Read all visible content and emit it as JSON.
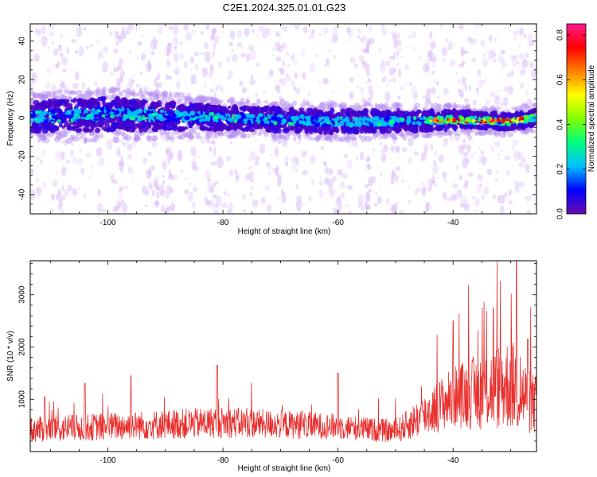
{
  "page_title": "C2E1.2024.325.01.01.G23",
  "colors": {
    "snr_line": "#e8302e",
    "colorbar": [
      "#6a0dad",
      "#0000ff",
      "#00c0ff",
      "#00ff80",
      "#80ff00",
      "#ffff00",
      "#ff8000",
      "#ff0000",
      "#ff1a8c"
    ],
    "noise_light": "#e6d2fa",
    "band_dark": "#4a00c8"
  },
  "chart_data": [
    {
      "type": "heatmap",
      "title": "C2E1.2024.325.01.01.G23",
      "xlabel": "Height of straight line (km)",
      "ylabel": "Frequency (Hz)",
      "xlim": [
        -113.5,
        -25.5
      ],
      "ylim": [
        -50,
        49
      ],
      "xticks": [
        -100,
        -80,
        -60,
        -40
      ],
      "yticks": [
        -40,
        -20,
        0,
        20,
        40
      ],
      "colorbar": {
        "label": "Normalized spectral amplitude",
        "range": [
          0,
          0.85
        ],
        "ticks": [
          0.0,
          0.2,
          0.4,
          0.6,
          0.8
        ]
      },
      "band_center_hz": [
        {
          "x": -113,
          "y": 0.5
        },
        {
          "x": -100,
          "y": 2.0
        },
        {
          "x": -80,
          "y": 0.0
        },
        {
          "x": -60,
          "y": -2.0
        },
        {
          "x": -45,
          "y": -1.5
        },
        {
          "x": -40,
          "y": -1.0
        },
        {
          "x": -30,
          "y": -2.0
        },
        {
          "x": -26,
          "y": 0.0
        }
      ],
      "band_halfwidth_hz": [
        {
          "x": -113,
          "y": 9
        },
        {
          "x": -100,
          "y": 10
        },
        {
          "x": -80,
          "y": 7
        },
        {
          "x": -60,
          "y": 7
        },
        {
          "x": -45,
          "y": 6
        },
        {
          "x": -35,
          "y": 5
        },
        {
          "x": -26,
          "y": 5
        }
      ]
    },
    {
      "type": "line",
      "xlabel": "Height of straight line (km)",
      "ylabel": "SNR (10 * v/v)",
      "xlim": [
        -113.5,
        -25.5
      ],
      "ylim": [
        0,
        3650
      ],
      "xticks": [
        -100,
        -80,
        -60,
        -40
      ],
      "yticks": [
        1000,
        2000,
        3000
      ],
      "envelope_mean": [
        {
          "x": -113,
          "y": 420
        },
        {
          "x": -100,
          "y": 480
        },
        {
          "x": -80,
          "y": 560
        },
        {
          "x": -60,
          "y": 480
        },
        {
          "x": -50,
          "y": 380
        },
        {
          "x": -45,
          "y": 700
        },
        {
          "x": -40,
          "y": 1050
        },
        {
          "x": -35,
          "y": 1150
        },
        {
          "x": -30,
          "y": 1300
        },
        {
          "x": -26,
          "y": 900
        }
      ],
      "envelope_amplitude": [
        {
          "x": -113,
          "y": 250
        },
        {
          "x": -80,
          "y": 300
        },
        {
          "x": -50,
          "y": 220
        },
        {
          "x": -40,
          "y": 600
        },
        {
          "x": -30,
          "y": 900
        },
        {
          "x": -26,
          "y": 600
        }
      ],
      "peaks": [
        {
          "x": -111,
          "y": 1050
        },
        {
          "x": -104,
          "y": 1300
        },
        {
          "x": -96,
          "y": 1450
        },
        {
          "x": -81,
          "y": 1650
        },
        {
          "x": -60,
          "y": 1500
        },
        {
          "x": -40,
          "y": 2500
        },
        {
          "x": -33,
          "y": 2750
        },
        {
          "x": -29,
          "y": 3700
        },
        {
          "x": -27,
          "y": 2150
        }
      ]
    }
  ]
}
